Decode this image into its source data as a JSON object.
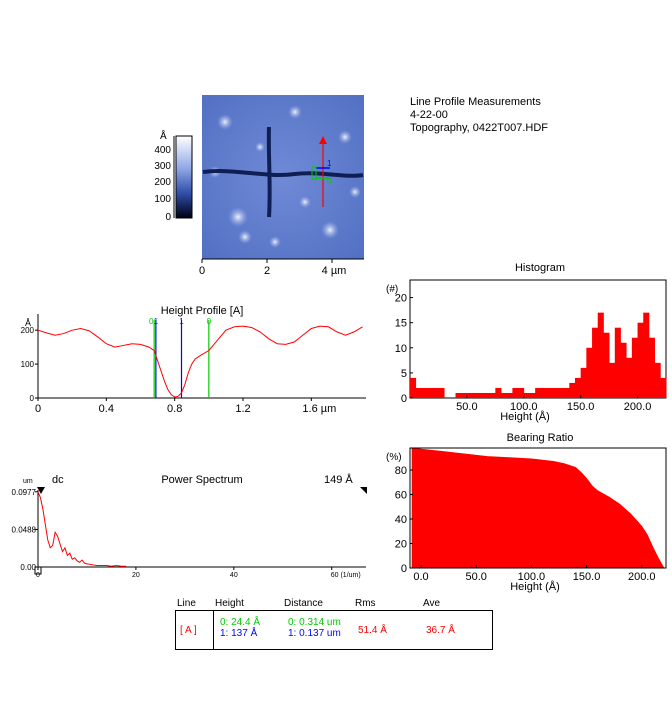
{
  "header": {
    "title": "Line Profile Measurements",
    "date": "4-22-00",
    "file": "Topography,  0422T007.HDF"
  },
  "image_panel": {
    "colorbar_unit": "Å",
    "colorbar_ticks": [
      "400",
      "300",
      "200",
      "100",
      "0"
    ],
    "x_ticks": [
      "0",
      "2",
      "4 µm"
    ],
    "cursor_labels": [
      "0",
      "1"
    ]
  },
  "colors": {
    "red": "#ff0000",
    "green": "#00cc00",
    "blue": "#0000ff",
    "image_base": "#5a78c8"
  },
  "chart_data": [
    {
      "type": "line",
      "id": "height_profile",
      "title": "Height Profile [A]",
      "ylabel": "Å",
      "xlabel": "",
      "x_ticks": [
        "0",
        "0.4",
        "0.8",
        "1.2",
        "1.6 µm"
      ],
      "y_ticks": [
        "200",
        "100",
        "0"
      ],
      "xlim": [
        0,
        1.92
      ],
      "ylim": [
        0,
        230
      ],
      "cursors": [
        {
          "label": "0",
          "x": 0.68,
          "color": "#00cc00"
        },
        {
          "label": "1",
          "x": 0.69,
          "color": "#0000ff"
        },
        {
          "label": "1",
          "x": 0.84,
          "color": "#0000ff"
        },
        {
          "label": "0",
          "x": 1.0,
          "color": "#00cc00"
        }
      ],
      "series": [
        {
          "x": [
            0,
            0.05,
            0.1,
            0.15,
            0.2,
            0.25,
            0.3,
            0.35,
            0.4,
            0.45,
            0.5,
            0.55,
            0.6,
            0.65,
            0.68,
            0.7,
            0.72,
            0.74,
            0.76,
            0.78,
            0.8,
            0.82,
            0.84,
            0.86,
            0.88,
            0.9,
            0.92,
            0.95,
            1.0,
            1.05,
            1.1,
            1.15,
            1.2,
            1.25,
            1.3,
            1.35,
            1.4,
            1.45,
            1.5,
            1.55,
            1.6,
            1.65,
            1.7,
            1.75,
            1.8,
            1.85,
            1.9
          ],
          "y": [
            200,
            192,
            185,
            190,
            200,
            205,
            198,
            180,
            160,
            150,
            155,
            160,
            158,
            150,
            140,
            110,
            80,
            50,
            25,
            10,
            3,
            5,
            15,
            40,
            75,
            100,
            115,
            125,
            140,
            170,
            200,
            210,
            212,
            208,
            195,
            175,
            160,
            158,
            165,
            185,
            205,
            212,
            210,
            195,
            185,
            195,
            210
          ]
        }
      ]
    },
    {
      "type": "bar",
      "id": "histogram",
      "title": "Histogram",
      "ylabel": "(#)",
      "xlabel": "Height (Å)",
      "x_ticks": [
        "50.0",
        "100.0",
        "150.0",
        "200.0"
      ],
      "y_ticks": [
        "20",
        "15",
        "10",
        "5",
        "0"
      ],
      "xlim": [
        0,
        225
      ],
      "ylim": [
        0,
        23.5
      ],
      "bin_start": 0,
      "bin_width": 5,
      "values": [
        4,
        2,
        2,
        2,
        2,
        2,
        0,
        0,
        1,
        1,
        1,
        1,
        1,
        1,
        1,
        2,
        1,
        1,
        2,
        2,
        1,
        1,
        2,
        2,
        2,
        2,
        2,
        2,
        3,
        4,
        6,
        10,
        14,
        17,
        13,
        7,
        14,
        11,
        8,
        12,
        15,
        17,
        12,
        7,
        4,
        0,
        0,
        0
      ]
    },
    {
      "type": "area",
      "id": "bearing_ratio",
      "title": "Bearing Ratio",
      "ylabel": "(%)",
      "xlabel": "Height (Å)",
      "x_ticks": [
        "0.0",
        "50.0",
        "100.0",
        "150.0",
        "200.0"
      ],
      "y_ticks": [
        "80",
        "60",
        "40",
        "20",
        "0"
      ],
      "xlim": [
        -10,
        222
      ],
      "ylim": [
        0,
        98
      ],
      "series": [
        {
          "x": [
            -8,
            0,
            20,
            40,
            60,
            80,
            100,
            120,
            130,
            140,
            145,
            150,
            155,
            160,
            170,
            180,
            190,
            200,
            205,
            210,
            215,
            220
          ],
          "y": [
            98,
            97,
            95,
            93,
            91,
            90,
            89,
            87,
            85,
            82,
            78,
            73,
            67,
            63,
            58,
            52,
            44,
            34,
            27,
            17,
            8,
            0
          ]
        }
      ]
    },
    {
      "type": "line",
      "id": "power_spectrum",
      "title": "Power Spectrum",
      "ylabel": "um",
      "xlabel": "",
      "y_ticks": [
        "0.0977",
        "0.0488",
        "0.00"
      ],
      "x_ticks": [
        "0",
        "20",
        "40",
        "60 (1/um)"
      ],
      "xlim": [
        0,
        67
      ],
      "ylim": [
        0,
        0.1
      ],
      "left_note": "dc",
      "right_note": "149 Å",
      "series": [
        {
          "x": [
            0,
            0.5,
            1,
            1.5,
            2,
            2.5,
            3,
            3.5,
            4,
            4.5,
            5,
            5.5,
            6,
            6.5,
            7,
            7.5,
            8,
            8.5,
            9,
            9.5,
            10,
            11,
            12,
            13,
            14,
            15,
            16,
            17,
            18
          ],
          "y": [
            0.0977,
            0.09,
            0.075,
            0.055,
            0.035,
            0.025,
            0.028,
            0.045,
            0.04,
            0.03,
            0.02,
            0.025,
            0.015,
            0.018,
            0.01,
            0.012,
            0.008,
            0.006,
            0.009,
            0.005,
            0.004,
            0.003,
            0.002,
            0.002,
            0.002,
            0.001,
            0.002,
            0.001,
            0.001
          ]
        }
      ]
    }
  ],
  "measurements": {
    "headers": [
      "Line",
      "Height",
      "Distance",
      "Rms",
      "Ave"
    ],
    "line_value": "[ A ]",
    "height_0": "0:  24.4 Å",
    "height_1": "1:   137 Å",
    "distance_0": "0:  0.314 um",
    "distance_1": "1:  0.137 um",
    "rms": "51.4 Å",
    "ave": "36.7 Å"
  }
}
